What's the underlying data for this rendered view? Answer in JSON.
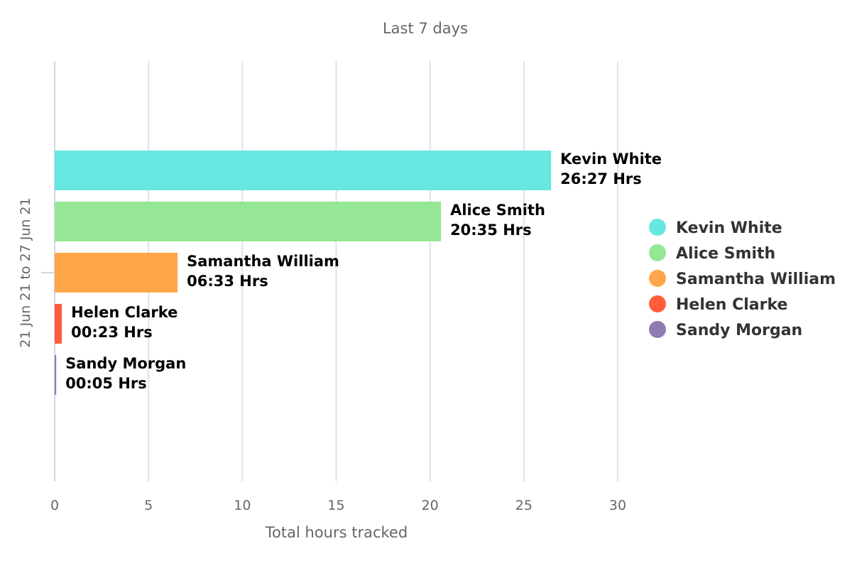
{
  "chart_data": {
    "type": "bar",
    "orientation": "horizontal",
    "title": "Last 7 days",
    "category": "21 Jun 21 to 27 Jun 21",
    "xlabel": "Total hours tracked",
    "ylabel": "",
    "xlim": [
      0,
      33
    ],
    "xticks": [
      0,
      5,
      10,
      15,
      20,
      25,
      30
    ],
    "grid": true,
    "legend": "right",
    "series": [
      {
        "name": "Kevin White",
        "value": 26.45,
        "label": "26:27 Hrs",
        "color": "#68e6e0"
      },
      {
        "name": "Alice Smith",
        "value": 20.583,
        "label": "20:35 Hrs",
        "color": "#95e695"
      },
      {
        "name": "Samantha William",
        "value": 6.55,
        "label": "06:33 Hrs",
        "color": "#ffa64a"
      },
      {
        "name": "Helen Clarke",
        "value": 0.383,
        "label": "00:23 Hrs",
        "color": "#ff5c3c"
      },
      {
        "name": "Sandy Morgan",
        "value": 0.083,
        "label": "00:05 Hrs",
        "color": "#8f7bb0"
      }
    ]
  }
}
